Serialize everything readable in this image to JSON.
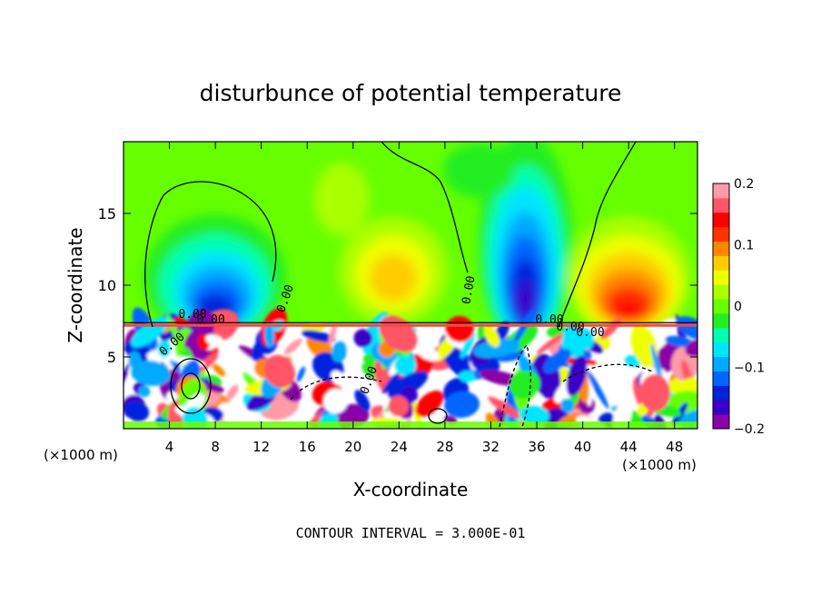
{
  "chart_data": {
    "type": "heatmap",
    "title": "disturbunce of potential temperature",
    "xlabel": "X-coordinate",
    "ylabel": "Z-coordinate",
    "x_unit_note": "(×1000 m)",
    "x_unit_note_right": "(×1000 m)",
    "xlim": [
      0,
      50
    ],
    "ylim": [
      0,
      20
    ],
    "x_ticks": [
      4,
      8,
      12,
      16,
      20,
      24,
      28,
      32,
      36,
      40,
      44,
      48
    ],
    "y_ticks": [
      5,
      10,
      15
    ],
    "colorbar": {
      "range": [
        -0.2,
        0.2
      ],
      "labels": [
        {
          "value": 0.2,
          "text": "0.2"
        },
        {
          "value": 0.1,
          "text": "0.1"
        },
        {
          "value": 0.0,
          "text": "0"
        },
        {
          "value": -0.1,
          "text": "−0.1"
        },
        {
          "value": -0.2,
          "text": "−0.2"
        }
      ],
      "colors": [
        "#8b00a8",
        "#3a00c8",
        "#0022dd",
        "#0066ff",
        "#00aaff",
        "#00e5ff",
        "#00ffb0",
        "#22ee22",
        "#66ff00",
        "#aaff00",
        "#eeff00",
        "#ffcc00",
        "#ff8800",
        "#ff3300",
        "#ff0000",
        "#ff5566",
        "#ff9aa6"
      ]
    },
    "features": [
      {
        "type": "cold",
        "x": 8,
        "z": 10.5,
        "amplitude": -0.16
      },
      {
        "type": "warm",
        "x": 23,
        "z": 11,
        "amplitude": 0.08
      },
      {
        "type": "cold",
        "x": 35,
        "z": 10.5,
        "amplitude": -0.2
      },
      {
        "type": "warm",
        "x": 44,
        "z": 10,
        "amplitude": 0.15
      }
    ],
    "contour_labels": [
      "0.00",
      "0.00",
      "0.00",
      "0.00",
      "0.00",
      "0.00",
      "0.00",
      "0.00",
      "0.00"
    ],
    "annotation": "CONTOUR INTERVAL = 3.000E-01"
  }
}
